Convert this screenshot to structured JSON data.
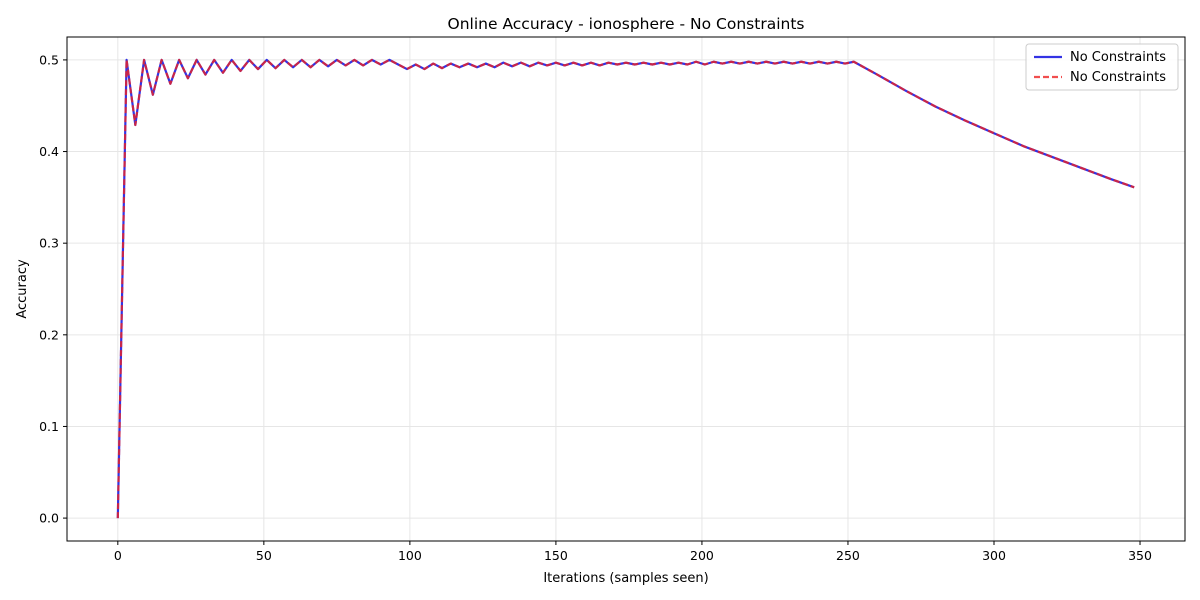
{
  "chart_data": {
    "type": "line",
    "title": "Online Accuracy - ionosphere - No Constraints",
    "xlabel": "Iterations (samples seen)",
    "ylabel": "Accuracy",
    "xlim": [
      -17.4,
      365.4
    ],
    "ylim": [
      -0.025,
      0.525
    ],
    "xticks": [
      0,
      50,
      100,
      150,
      200,
      250,
      300,
      350
    ],
    "yticks": [
      0.0,
      0.1,
      0.2,
      0.3,
      0.4,
      0.5
    ],
    "grid": true,
    "legend_position": "top-right",
    "series": [
      {
        "name": "No Constraints",
        "color": "#0000dd",
        "style": "solid",
        "x": [
          0,
          3,
          6,
          9,
          12,
          15,
          18,
          21,
          24,
          27,
          30,
          33,
          36,
          39,
          42,
          45,
          48,
          51,
          54,
          57,
          60,
          63,
          66,
          69,
          72,
          75,
          78,
          81,
          84,
          87,
          90,
          93,
          96,
          99,
          102,
          105,
          108,
          111,
          114,
          117,
          120,
          123,
          126,
          129,
          132,
          135,
          138,
          141,
          144,
          147,
          150,
          153,
          156,
          159,
          162,
          165,
          168,
          171,
          174,
          177,
          180,
          183,
          186,
          189,
          192,
          195,
          198,
          201,
          204,
          207,
          210,
          213,
          216,
          219,
          222,
          225,
          228,
          231,
          234,
          237,
          240,
          243,
          246,
          249,
          252,
          260,
          270,
          280,
          290,
          300,
          310,
          320,
          330,
          340,
          348
        ],
        "y": [
          0.0,
          0.5,
          0.429,
          0.5,
          0.462,
          0.5,
          0.474,
          0.5,
          0.48,
          0.5,
          0.484,
          0.5,
          0.486,
          0.5,
          0.488,
          0.5,
          0.49,
          0.5,
          0.491,
          0.5,
          0.492,
          0.5,
          0.492,
          0.5,
          0.493,
          0.5,
          0.494,
          0.5,
          0.494,
          0.5,
          0.495,
          0.5,
          0.495,
          0.49,
          0.495,
          0.49,
          0.496,
          0.491,
          0.496,
          0.492,
          0.496,
          0.492,
          0.496,
          0.492,
          0.497,
          0.493,
          0.497,
          0.493,
          0.497,
          0.494,
          0.497,
          0.494,
          0.497,
          0.494,
          0.497,
          0.494,
          0.497,
          0.495,
          0.497,
          0.495,
          0.497,
          0.495,
          0.497,
          0.495,
          0.497,
          0.495,
          0.498,
          0.495,
          0.498,
          0.496,
          0.498,
          0.496,
          0.498,
          0.496,
          0.498,
          0.496,
          0.498,
          0.496,
          0.498,
          0.496,
          0.498,
          0.496,
          0.498,
          0.496,
          0.498,
          0.484,
          0.466,
          0.449,
          0.434,
          0.42,
          0.406,
          0.394,
          0.382,
          0.37,
          0.361
        ]
      },
      {
        "name": "No Constraints",
        "color": "#ee2222",
        "style": "dashed",
        "same_as_series": 0
      }
    ]
  }
}
